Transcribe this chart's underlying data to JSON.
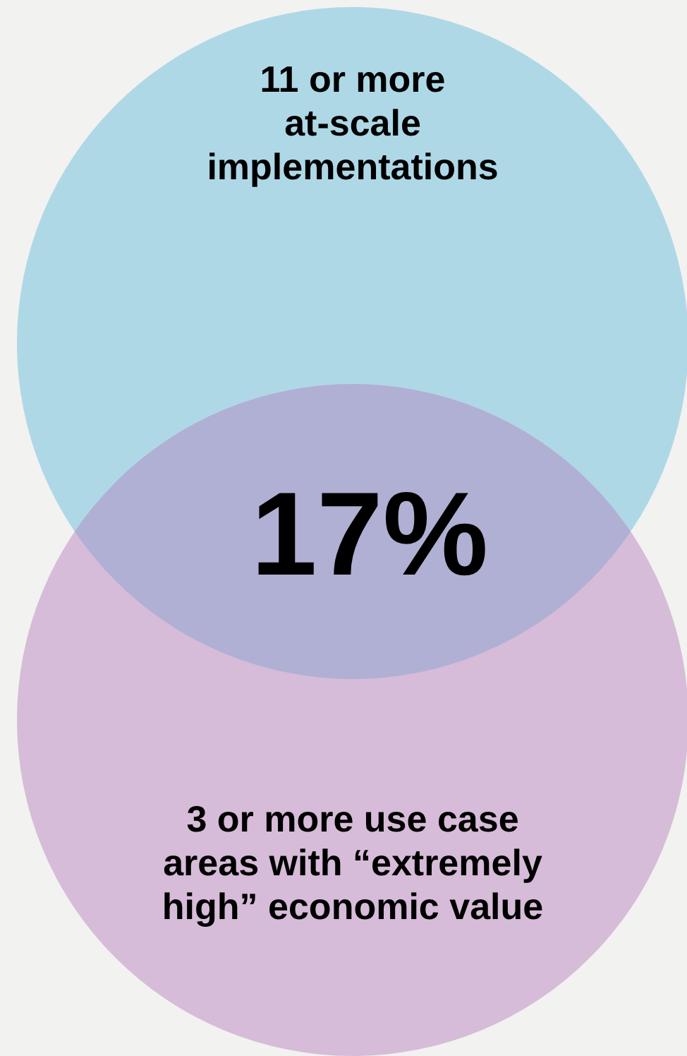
{
  "chart_data": {
    "type": "other",
    "categories": [
      "11 or more at-scale implementations",
      "3 or more use case areas with “extremely high” economic value",
      null
    ],
    "colors": [
      "#afd8e7",
      "#d6bcd8",
      "#b0b0d4"
    ],
    "values": [
      null,
      null,
      17
    ],
    "value_labels": [
      null,
      null,
      "17%"
    ]
  }
}
